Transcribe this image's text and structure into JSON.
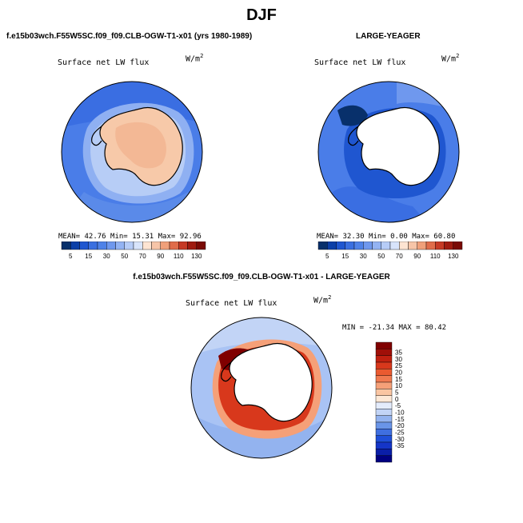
{
  "main_title": "DJF",
  "chart_data": [
    {
      "type": "heatmap",
      "projection": "south-polar-stereographic",
      "title": "f.e15b03wch.F55W5SC.f09_f09.CLB-OGW-T1-x01 (yrs 1980-1989)",
      "variable": "Surface net LW flux",
      "units_base": "W/m",
      "units_exp": "2",
      "stats": {
        "mean": "42.76",
        "min": "15.31",
        "max": "92.96"
      },
      "stats_text": "MEAN=  42.76  Min=  15.31  Max=  92.96",
      "colorbar": {
        "orientation": "horizontal",
        "levels": [
          5,
          10,
          15,
          20,
          30,
          40,
          50,
          60,
          70,
          80,
          90,
          100,
          110,
          120,
          130
        ],
        "tick_labels": [
          "5",
          "15",
          "30",
          "50",
          "70",
          "90",
          "110",
          "130"
        ],
        "colors": [
          "#08306b",
          "#0b3fa8",
          "#1f56d0",
          "#3a6fe0",
          "#4f82e8",
          "#6f98ee",
          "#93b3f3",
          "#b6ccf7",
          "#d8e4fb",
          "#fde4d2",
          "#f7c5a8",
          "#f0a07a",
          "#e06c4a",
          "#c63a25",
          "#a01b10",
          "#7a0a05"
        ]
      }
    },
    {
      "type": "heatmap",
      "projection": "south-polar-stereographic",
      "title": "LARGE-YEAGER",
      "variable": "Surface net LW flux",
      "units_base": "W/m",
      "units_exp": "2",
      "stats": {
        "mean": "32.30",
        "min": "0.00",
        "max": "60.80"
      },
      "stats_text": "MEAN=  32.30  Min=   0.00  Max=  60.80",
      "colorbar": {
        "orientation": "horizontal",
        "levels": [
          5,
          10,
          15,
          20,
          30,
          40,
          50,
          60,
          70,
          80,
          90,
          100,
          110,
          120,
          130
        ],
        "tick_labels": [
          "5",
          "15",
          "30",
          "50",
          "70",
          "90",
          "110",
          "130"
        ],
        "colors": [
          "#08306b",
          "#0b3fa8",
          "#1f56d0",
          "#3a6fe0",
          "#4f82e8",
          "#6f98ee",
          "#93b3f3",
          "#b6ccf7",
          "#d8e4fb",
          "#fde4d2",
          "#f7c5a8",
          "#f0a07a",
          "#e06c4a",
          "#c63a25",
          "#a01b10",
          "#7a0a05"
        ]
      }
    },
    {
      "type": "heatmap",
      "projection": "south-polar-stereographic",
      "title": "f.e15b03wch.F55W5SC.f09_f09.CLB-OGW-T1-x01 - LARGE-YEAGER",
      "variable": "Surface net LW flux",
      "units_base": "W/m",
      "units_exp": "2",
      "stats": {
        "min": "-21.34",
        "max": "80.42"
      },
      "stats_text": "MIN = -21.34  MAX =  80.42",
      "colorbar": {
        "orientation": "vertical",
        "levels": [
          35,
          30,
          25,
          20,
          15,
          10,
          5,
          0,
          -5,
          -10,
          -15,
          -20,
          -25,
          -30,
          -35
        ],
        "tick_labels": [
          "35",
          "30",
          "25",
          "20",
          "15",
          "10",
          "5",
          "0",
          "-5",
          "-10",
          "-15",
          "-20",
          "-25",
          "-30",
          "-35"
        ],
        "colors": [
          "#800000",
          "#a00f08",
          "#c02010",
          "#d8381c",
          "#ea5a30",
          "#f07a50",
          "#f5a078",
          "#fac5a2",
          "#fde8d6",
          "#e4ecfc",
          "#c2d4f6",
          "#93b3ef",
          "#6a95e8",
          "#3f6fe0",
          "#1f4fd8",
          "#1535c8",
          "#0a1ea8",
          "#000080"
        ]
      }
    }
  ]
}
